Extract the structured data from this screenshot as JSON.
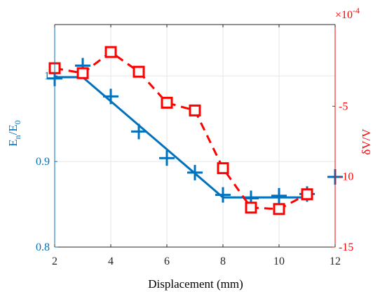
{
  "chart_data": {
    "type": "line",
    "xlabel": "Displacement (mm)",
    "xlim": [
      2,
      12
    ],
    "xticks": [
      2,
      4,
      6,
      8,
      10,
      12
    ],
    "grid": true,
    "left_axis": {
      "label_main": "E",
      "label_sub1": "n",
      "label_mid": "/E",
      "label_sub2": "0",
      "ylim": [
        0.8,
        1.06
      ],
      "ticks": [
        0.8,
        0.9,
        1
      ],
      "tick_labels": [
        "0.8",
        "0.9",
        "1"
      ],
      "color": "#0072BD"
    },
    "right_axis": {
      "label": "δV/V",
      "ylim": [
        -15,
        0.8
      ],
      "ticks": [
        -15,
        -10,
        -5
      ],
      "tick_labels": [
        "-15",
        "-10",
        "-5"
      ],
      "multiplier_base": "×10",
      "multiplier_exp": "-4",
      "color": "#FF0000"
    },
    "series": [
      {
        "axis": "left",
        "style": "markers",
        "marker": "plus",
        "color": "#0072BD",
        "x": [
          2,
          3,
          4,
          5,
          6,
          7,
          8,
          9,
          10,
          11,
          12
        ],
        "y": [
          0.997,
          1.012,
          0.976,
          0.935,
          0.904,
          0.887,
          0.861,
          0.857,
          0.86,
          0.862,
          0.882
        ]
      },
      {
        "axis": "left",
        "style": "solid-line",
        "color": "#0072BD",
        "x": [
          2,
          3,
          8,
          11
        ],
        "y": [
          0.9985,
          0.9985,
          0.858,
          0.858
        ]
      },
      {
        "axis": "right",
        "style": "dashed-line-square-markers",
        "marker": "square",
        "color": "#FF0000",
        "x": [
          2,
          3,
          4,
          5,
          6,
          7,
          8,
          9,
          10,
          11
        ],
        "y": [
          -2.3,
          -2.65,
          -1.15,
          -2.55,
          -4.75,
          -5.3,
          -9.4,
          -12.2,
          -12.3,
          -11.25
        ]
      }
    ]
  }
}
